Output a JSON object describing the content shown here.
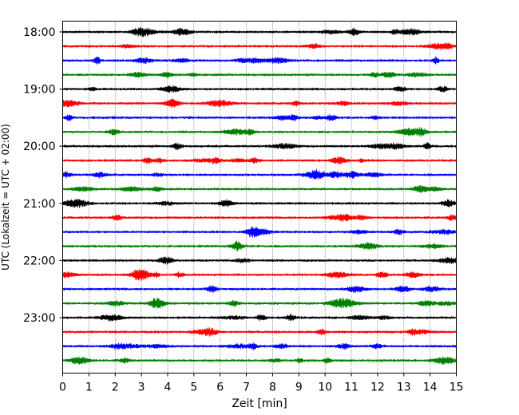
{
  "chart_data": {
    "type": "line",
    "title": "",
    "xlabel": "Zeit  [min]",
    "ylabel": "UTC (Lokalzeit = UTC + 02:00)",
    "xlim": [
      0,
      15
    ],
    "x_ticks": [
      "0",
      "1",
      "2",
      "3",
      "4",
      "5",
      "6",
      "7",
      "8",
      "9",
      "10",
      "11",
      "12",
      "13",
      "14",
      "15"
    ],
    "y_ticks": [
      "18:00",
      "19:00",
      "20:00",
      "21:00",
      "22:00",
      "23:00"
    ],
    "grid": "vertical dotted",
    "colors": {
      "cycle": [
        "#000000",
        "#ff0000",
        "#0000ff",
        "#008000"
      ],
      "grid": "#000000",
      "frame": "#000000"
    },
    "series": [
      {
        "start": "18:00",
        "color": "#000000"
      },
      {
        "start": "18:15",
        "color": "#ff0000"
      },
      {
        "start": "18:30",
        "color": "#0000ff"
      },
      {
        "start": "18:45",
        "color": "#008000"
      },
      {
        "start": "19:00",
        "color": "#000000"
      },
      {
        "start": "19:15",
        "color": "#ff0000"
      },
      {
        "start": "19:30",
        "color": "#0000ff"
      },
      {
        "start": "19:45",
        "color": "#008000"
      },
      {
        "start": "20:00",
        "color": "#000000"
      },
      {
        "start": "20:15",
        "color": "#ff0000"
      },
      {
        "start": "20:30",
        "color": "#0000ff"
      },
      {
        "start": "20:45",
        "color": "#008000"
      },
      {
        "start": "21:00",
        "color": "#000000"
      },
      {
        "start": "21:15",
        "color": "#ff0000"
      },
      {
        "start": "21:30",
        "color": "#0000ff"
      },
      {
        "start": "21:45",
        "color": "#008000"
      },
      {
        "start": "22:00",
        "color": "#000000"
      },
      {
        "start": "22:15",
        "color": "#ff0000"
      },
      {
        "start": "22:30",
        "color": "#0000ff"
      },
      {
        "start": "22:45",
        "color": "#008000"
      },
      {
        "start": "23:00",
        "color": "#000000"
      },
      {
        "start": "23:15",
        "color": "#ff0000"
      },
      {
        "start": "23:30",
        "color": "#0000ff"
      },
      {
        "start": "23:45",
        "color": "#008000"
      }
    ]
  }
}
